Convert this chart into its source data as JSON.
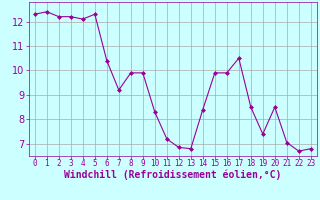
{
  "x": [
    0,
    1,
    2,
    3,
    4,
    5,
    6,
    7,
    8,
    9,
    10,
    11,
    12,
    13,
    14,
    15,
    16,
    17,
    18,
    19,
    20,
    21,
    22,
    23
  ],
  "y": [
    12.3,
    12.4,
    12.2,
    12.2,
    12.1,
    12.3,
    10.4,
    9.2,
    9.9,
    9.9,
    8.3,
    7.2,
    6.85,
    6.8,
    8.4,
    9.9,
    9.9,
    10.5,
    8.5,
    7.4,
    8.5,
    7.05,
    6.7,
    6.8
  ],
  "line_color": "#990099",
  "marker": "D",
  "marker_size": 2,
  "bg_color": "#ccffff",
  "grid_color": "#aaaaaa",
  "xlabel": "Windchill (Refroidissement éolien,°C)",
  "xlim": [
    -0.5,
    23.5
  ],
  "ylim": [
    6.5,
    12.8
  ],
  "yticks": [
    7,
    8,
    9,
    10,
    11,
    12
  ],
  "xticks": [
    0,
    1,
    2,
    3,
    4,
    5,
    6,
    7,
    8,
    9,
    10,
    11,
    12,
    13,
    14,
    15,
    16,
    17,
    18,
    19,
    20,
    21,
    22,
    23
  ],
  "tick_color": "#990099",
  "label_color": "#990099",
  "xtick_fontsize": 5.5,
  "ytick_fontsize": 7,
  "xlabel_fontsize": 7
}
